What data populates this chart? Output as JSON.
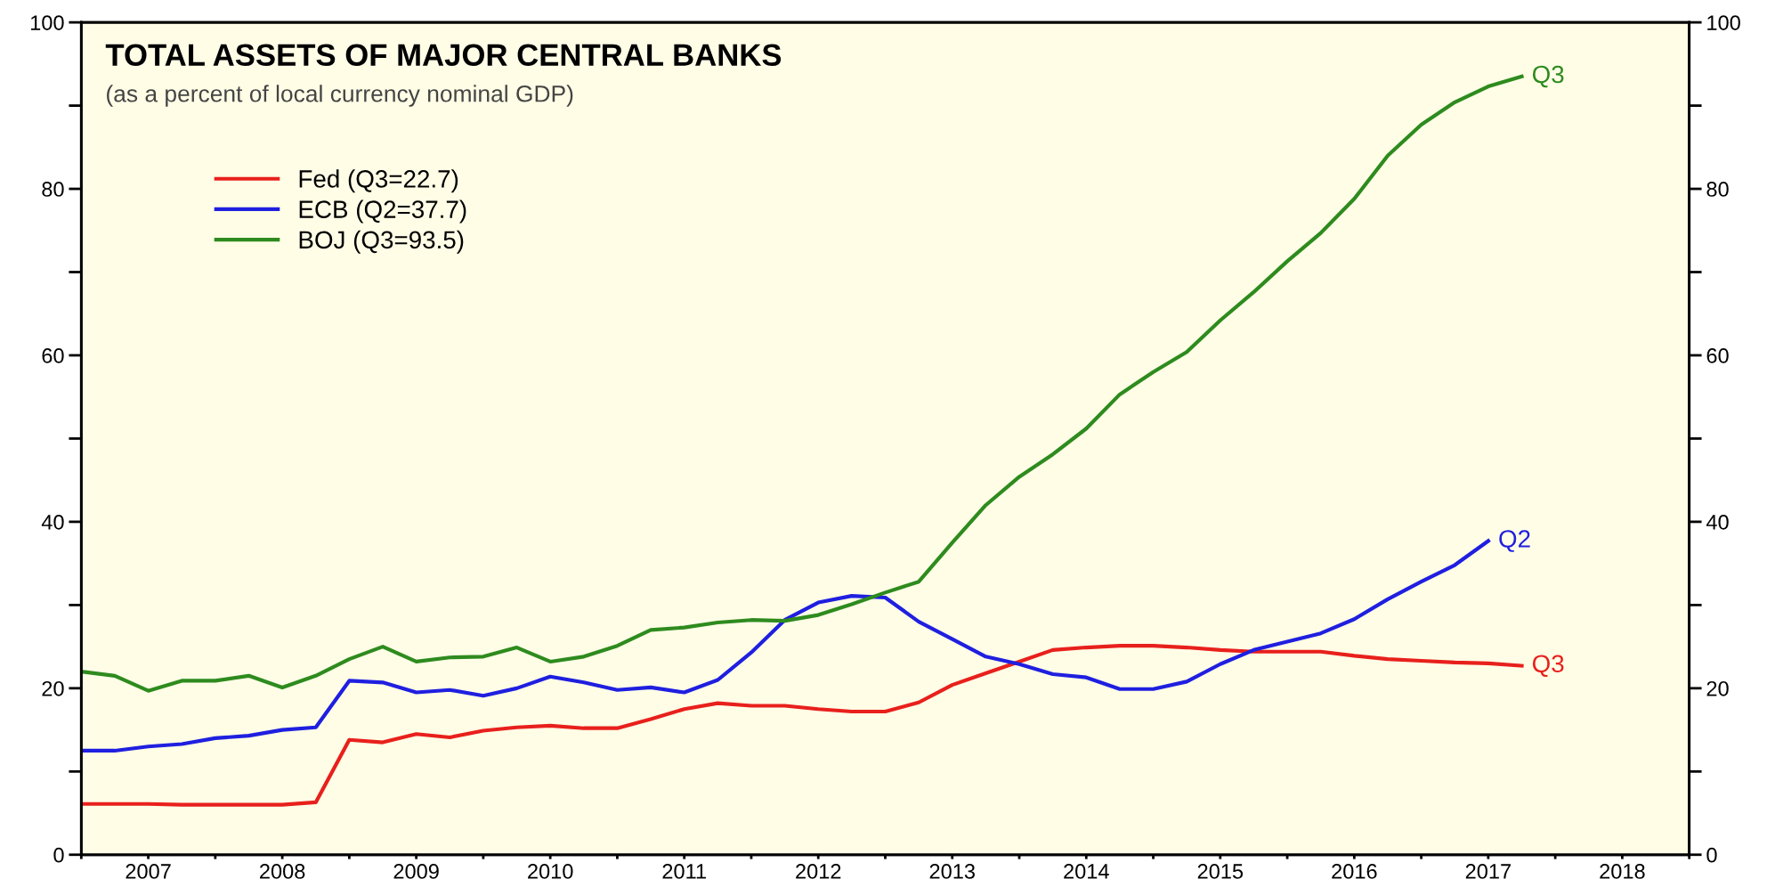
{
  "chart_data": {
    "type": "line",
    "title": "TOTAL ASSETS OF MAJOR CENTRAL BANKS",
    "subtitle": "(as a percent of local currency nominal GDP)",
    "series": [
      {
        "name": "Fed (Q3=22.7)",
        "color": "#e8201c",
        "x": [
          2007.0,
          2007.25,
          2007.5,
          2007.75,
          2008.0,
          2008.25,
          2008.5,
          2008.75,
          2009.0,
          2009.25,
          2009.5,
          2009.75,
          2010.0,
          2010.25,
          2010.5,
          2010.75,
          2011.0,
          2011.25,
          2011.5,
          2011.75,
          2012.0,
          2012.25,
          2012.5,
          2012.75,
          2013.0,
          2013.25,
          2013.5,
          2013.75,
          2014.0,
          2014.25,
          2014.5,
          2014.75,
          2015.0,
          2015.25,
          2015.5,
          2015.75,
          2016.0,
          2016.25,
          2016.5,
          2016.75,
          2017.0,
          2017.25,
          2017.5,
          2017.75
        ],
        "values": [
          6.1,
          6.1,
          6.1,
          6.0,
          6.0,
          6.0,
          6.0,
          6.3,
          13.8,
          13.5,
          14.5,
          14.1,
          14.9,
          15.3,
          15.5,
          15.2,
          15.2,
          16.3,
          17.5,
          18.2,
          17.9,
          17.9,
          17.5,
          17.2,
          17.2,
          18.3,
          20.4,
          21.8,
          23.2,
          24.6,
          24.9,
          25.1,
          25.1,
          24.9,
          24.6,
          24.4,
          24.4,
          24.4,
          23.9,
          23.5,
          23.3,
          23.1,
          23.0,
          22.7
        ]
      },
      {
        "name": "ECB (Q2=37.7)",
        "color": "#1f1fe0",
        "x": [
          2007.0,
          2007.25,
          2007.5,
          2007.75,
          2008.0,
          2008.25,
          2008.5,
          2008.75,
          2009.0,
          2009.25,
          2009.5,
          2009.75,
          2010.0,
          2010.25,
          2010.5,
          2010.75,
          2011.0,
          2011.25,
          2011.5,
          2011.75,
          2012.0,
          2012.25,
          2012.5,
          2012.75,
          2013.0,
          2013.25,
          2013.5,
          2013.75,
          2014.0,
          2014.25,
          2014.5,
          2014.75,
          2015.0,
          2015.25,
          2015.5,
          2015.75,
          2016.0,
          2016.25,
          2016.5,
          2016.75,
          2017.0,
          2017.25,
          2017.5
        ],
        "values": [
          12.5,
          12.5,
          13.0,
          13.3,
          14.0,
          14.3,
          15.0,
          15.3,
          20.9,
          20.7,
          19.5,
          19.8,
          19.1,
          20.0,
          21.4,
          20.7,
          19.8,
          20.1,
          19.5,
          21.0,
          24.3,
          28.2,
          30.3,
          31.1,
          30.9,
          28.0,
          25.9,
          23.8,
          22.9,
          21.7,
          21.3,
          19.9,
          19.9,
          20.8,
          22.9,
          24.6,
          25.6,
          26.6,
          28.3,
          30.7,
          32.8,
          34.8,
          37.7
        ]
      },
      {
        "name": "BOJ (Q3=93.5)",
        "color": "#2e8b1e",
        "x": [
          2007.0,
          2007.25,
          2007.5,
          2007.75,
          2008.0,
          2008.25,
          2008.5,
          2008.75,
          2009.0,
          2009.25,
          2009.5,
          2009.75,
          2010.0,
          2010.25,
          2010.5,
          2010.75,
          2011.0,
          2011.25,
          2011.5,
          2011.75,
          2012.0,
          2012.25,
          2012.5,
          2012.75,
          2013.0,
          2013.25,
          2013.5,
          2013.75,
          2014.0,
          2014.25,
          2014.5,
          2014.75,
          2015.0,
          2015.25,
          2015.5,
          2015.75,
          2016.0,
          2016.25,
          2016.5,
          2016.75,
          2017.0,
          2017.25,
          2017.5,
          2017.75
        ],
        "values": [
          22.0,
          21.5,
          19.7,
          20.9,
          20.9,
          21.5,
          20.1,
          21.5,
          23.5,
          25.0,
          23.2,
          23.7,
          23.8,
          24.9,
          23.2,
          23.8,
          25.1,
          27.0,
          27.3,
          27.9,
          28.2,
          28.1,
          28.8,
          30.1,
          31.5,
          32.8,
          37.5,
          42.0,
          45.4,
          48.1,
          51.2,
          55.3,
          58.0,
          60.4,
          64.2,
          67.6,
          71.3,
          74.7,
          78.8,
          84.0,
          87.7,
          90.4,
          92.3,
          93.5
        ]
      }
    ],
    "annotations": [
      "Q3",
      "Q2",
      "Q3"
    ],
    "xlim": [
      2007,
      2019
    ],
    "xticks": [
      {
        "value": 2007,
        "label": null
      },
      {
        "value": 2007.5,
        "label": "2007"
      },
      {
        "value": 2008,
        "label": null
      },
      {
        "value": 2008.5,
        "label": "2008"
      },
      {
        "value": 2009,
        "label": null
      },
      {
        "value": 2009.5,
        "label": "2009"
      },
      {
        "value": 2010,
        "label": null
      },
      {
        "value": 2010.5,
        "label": "2010"
      },
      {
        "value": 2011,
        "label": null
      },
      {
        "value": 2011.5,
        "label": "2011"
      },
      {
        "value": 2012,
        "label": null
      },
      {
        "value": 2012.5,
        "label": "2012"
      },
      {
        "value": 2013,
        "label": null
      },
      {
        "value": 2013.5,
        "label": "2013"
      },
      {
        "value": 2014,
        "label": null
      },
      {
        "value": 2014.5,
        "label": "2014"
      },
      {
        "value": 2015,
        "label": null
      },
      {
        "value": 2015.5,
        "label": "2015"
      },
      {
        "value": 2016,
        "label": null
      },
      {
        "value": 2016.5,
        "label": "2016"
      },
      {
        "value": 2017,
        "label": null
      },
      {
        "value": 2017.5,
        "label": "2017"
      },
      {
        "value": 2018,
        "label": null
      },
      {
        "value": 2018.5,
        "label": "2018"
      },
      {
        "value": 2019,
        "label": null
      }
    ],
    "ylim": [
      0,
      100
    ],
    "yticks": [
      0,
      {
        "value": 10,
        "label": null
      },
      20,
      {
        "value": 30,
        "label": null
      },
      40,
      {
        "value": 50,
        "label": null
      },
      60,
      {
        "value": 70,
        "label": null
      },
      80,
      {
        "value": 90,
        "label": null
      },
      100
    ],
    "y2lim": [
      0,
      100
    ],
    "y2ticks": [
      0,
      {
        "value": 10,
        "label": null
      },
      20,
      {
        "value": 30,
        "label": null
      },
      40,
      {
        "value": 50,
        "label": null
      },
      60,
      {
        "value": 70,
        "label": null
      },
      80,
      {
        "value": 90,
        "label": null
      },
      100
    ],
    "legend": "top left",
    "grid": false,
    "line_style": "solid"
  }
}
